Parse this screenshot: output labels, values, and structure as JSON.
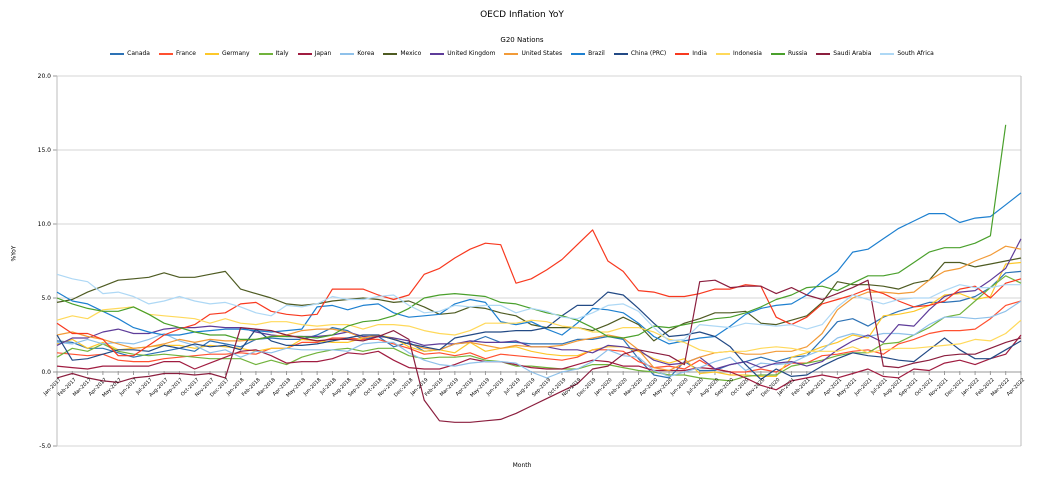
{
  "title": "OECD Inflation YoY",
  "subtitle": "G20 Nations",
  "chart_data": {
    "type": "line",
    "title": "OECD Inflation YoY",
    "subtitle": "G20 Nations",
    "xlabel": "Month",
    "ylabel": "%YoY",
    "ylim": [
      -5.0,
      20.0
    ],
    "grid": "horizontal",
    "legend_position": "top",
    "y_ticks": [
      "20.0",
      "15.0",
      "10.0",
      "5.0",
      "0.0",
      "-5.0"
    ],
    "x": [
      "Jan-2017",
      "Feb-2017",
      "Mar-2017",
      "Apr-2017",
      "May-2017",
      "Jun-2017",
      "Jul-2017",
      "Aug-2017",
      "Sep-2017",
      "Oct-2017",
      "Nov-2017",
      "Dec-2017",
      "Jan-2018",
      "Feb-2018",
      "Mar-2018",
      "Apr-2018",
      "May-2018",
      "Jun-2018",
      "Jul-2018",
      "Aug-2018",
      "Sep-2018",
      "Oct-2018",
      "Nov-2018",
      "Dec-2018",
      "Jan-2019",
      "Feb-2019",
      "Mar-2019",
      "Apr-2019",
      "May-2019",
      "Jun-2019",
      "Jul-2019",
      "Aug-2019",
      "Sep-2019",
      "Oct-2019",
      "Nov-2019",
      "Dec-2019",
      "Jan-2020",
      "Feb-2020",
      "Mar-2020",
      "Apr-2020",
      "May-2020",
      "Jun-2020",
      "Jul-2020",
      "Aug-2020",
      "Sep-2020",
      "Oct-2020",
      "Nov-2020",
      "Dec-2020",
      "Jan-2021",
      "Feb-2021",
      "Mar-2021",
      "Apr-2021",
      "May-2021",
      "Jun-2021",
      "Jul-2021",
      "Aug-2021",
      "Sep-2021",
      "Oct-2021",
      "Nov-2021",
      "Dec-2021",
      "Jan-2022",
      "Feb-2022",
      "Mar-2022",
      "Apr-2022"
    ],
    "series": [
      {
        "name": "Canada",
        "color": "#2d72b5",
        "values": [
          2.1,
          2.0,
          1.6,
          1.6,
          1.3,
          1.0,
          1.2,
          1.4,
          1.6,
          1.4,
          2.1,
          1.9,
          1.7,
          2.2,
          2.3,
          2.2,
          2.2,
          2.5,
          3.0,
          2.8,
          2.2,
          2.4,
          1.7,
          2.0,
          1.4,
          1.5,
          1.9,
          2.0,
          2.4,
          2.0,
          2.0,
          1.9,
          1.9,
          1.9,
          2.2,
          2.2,
          2.4,
          2.2,
          0.9,
          -0.2,
          -0.4,
          0.7,
          0.1,
          0.1,
          0.5,
          0.7,
          1.0,
          0.7,
          1.0,
          1.1,
          2.2,
          3.4,
          3.6,
          3.1,
          3.7,
          4.1,
          4.4,
          4.7,
          4.7,
          4.8,
          5.1,
          5.7,
          6.7,
          6.8
        ]
      },
      {
        "name": "France",
        "color": "#ff5030",
        "values": [
          1.3,
          1.2,
          1.1,
          1.2,
          0.8,
          0.7,
          0.7,
          0.9,
          1.0,
          1.1,
          1.2,
          1.2,
          1.3,
          1.2,
          1.6,
          1.6,
          2.0,
          2.0,
          2.3,
          2.3,
          2.2,
          2.2,
          1.9,
          1.6,
          1.2,
          1.3,
          1.1,
          1.3,
          0.9,
          1.2,
          1.1,
          1.0,
          0.9,
          0.8,
          1.0,
          1.5,
          1.5,
          1.4,
          0.7,
          0.3,
          0.4,
          0.2,
          0.8,
          0.2,
          0.0,
          0.0,
          0.2,
          0.0,
          0.6,
          0.6,
          1.1,
          1.2,
          1.4,
          1.5,
          1.2,
          1.9,
          2.2,
          2.6,
          2.8,
          2.8,
          2.9,
          3.6,
          4.5,
          4.8
        ]
      },
      {
        "name": "Germany",
        "color": "#fdc82a",
        "values": [
          1.9,
          2.2,
          1.6,
          2.0,
          1.5,
          1.6,
          1.7,
          1.8,
          1.8,
          1.6,
          1.8,
          1.7,
          1.6,
          1.4,
          1.6,
          1.6,
          2.2,
          2.1,
          2.0,
          2.0,
          2.3,
          2.5,
          2.3,
          1.7,
          1.4,
          1.5,
          1.3,
          2.0,
          1.4,
          1.6,
          1.7,
          1.4,
          1.2,
          1.1,
          1.1,
          1.5,
          1.7,
          1.7,
          1.4,
          0.9,
          0.6,
          0.9,
          -0.1,
          0.0,
          -0.2,
          -0.2,
          -0.3,
          -0.3,
          1.0,
          1.3,
          1.7,
          2.0,
          2.5,
          2.3,
          3.8,
          3.9,
          4.1,
          4.5,
          5.2,
          5.3,
          4.9,
          5.1,
          7.3,
          7.4
        ]
      },
      {
        "name": "Italy",
        "color": "#71b33c",
        "values": [
          1.0,
          1.6,
          1.4,
          1.9,
          1.4,
          1.2,
          1.1,
          1.2,
          1.1,
          1.0,
          0.9,
          0.9,
          0.9,
          0.5,
          0.8,
          0.5,
          1.0,
          1.3,
          1.5,
          1.6,
          1.4,
          1.6,
          1.6,
          1.1,
          0.9,
          1.0,
          1.0,
          1.1,
          0.8,
          0.7,
          0.4,
          0.4,
          0.3,
          0.2,
          0.2,
          0.5,
          0.5,
          0.3,
          0.1,
          0.0,
          -0.2,
          -0.2,
          -0.4,
          -0.5,
          -0.6,
          -0.3,
          -0.2,
          -0.2,
          0.4,
          0.6,
          0.8,
          1.1,
          1.3,
          1.3,
          1.9,
          2.0,
          2.5,
          3.0,
          3.7,
          3.9,
          4.8,
          5.7,
          6.5,
          6.0
        ]
      },
      {
        "name": "Japan",
        "color": "#a01c40",
        "values": [
          0.4,
          0.3,
          0.2,
          0.4,
          0.4,
          0.4,
          0.4,
          0.7,
          0.7,
          0.2,
          0.6,
          1.0,
          1.4,
          1.5,
          1.1,
          0.6,
          0.7,
          0.7,
          0.9,
          1.3,
          1.2,
          1.4,
          0.8,
          0.3,
          0.2,
          0.2,
          0.5,
          0.9,
          0.7,
          0.7,
          0.5,
          0.3,
          0.2,
          0.2,
          0.5,
          0.8,
          0.7,
          0.4,
          0.4,
          0.1,
          0.1,
          0.1,
          0.3,
          0.2,
          0.0,
          -0.4,
          -0.9,
          -1.2,
          -0.6,
          -0.4,
          -0.2,
          -0.4,
          -0.1,
          0.2,
          -0.3,
          -0.4,
          0.2,
          0.1,
          0.6,
          0.8,
          0.5,
          0.9,
          1.2,
          2.5
        ]
      },
      {
        "name": "Korea",
        "color": "#8fc1ea",
        "values": [
          2.0,
          1.9,
          2.2,
          1.9,
          2.0,
          1.9,
          2.2,
          2.6,
          2.1,
          1.8,
          1.3,
          1.5,
          1.0,
          1.4,
          1.3,
          1.6,
          1.5,
          1.5,
          1.5,
          1.4,
          1.9,
          2.0,
          2.0,
          1.3,
          0.8,
          0.5,
          0.4,
          0.6,
          0.7,
          0.7,
          0.6,
          0.0,
          -0.4,
          0.0,
          0.2,
          0.7,
          1.5,
          1.1,
          1.0,
          0.1,
          -0.3,
          0.0,
          0.3,
          0.7,
          1.0,
          0.1,
          0.6,
          0.5,
          0.6,
          1.1,
          1.5,
          2.3,
          2.6,
          2.4,
          2.6,
          2.6,
          2.5,
          3.2,
          3.7,
          3.7,
          3.6,
          3.7,
          4.1,
          4.8
        ]
      },
      {
        "name": "Mexico",
        "color": "#4e5b22",
        "values": [
          4.7,
          4.9,
          5.4,
          5.8,
          6.2,
          6.3,
          6.4,
          6.7,
          6.4,
          6.4,
          6.6,
          6.8,
          5.6,
          5.3,
          5.0,
          4.6,
          4.5,
          4.6,
          4.8,
          4.9,
          5.0,
          4.9,
          4.7,
          4.8,
          4.4,
          3.9,
          4.0,
          4.4,
          4.3,
          4.0,
          3.8,
          3.2,
          3.0,
          3.0,
          3.0,
          2.8,
          3.2,
          3.7,
          3.2,
          2.1,
          2.8,
          3.3,
          3.6,
          4.0,
          4.0,
          4.1,
          3.3,
          3.2,
          3.5,
          3.8,
          4.7,
          6.1,
          5.9,
          5.9,
          5.8,
          5.6,
          6.0,
          6.2,
          7.4,
          7.4,
          7.1,
          7.3,
          7.5,
          7.7
        ]
      },
      {
        "name": "United Kingdom",
        "color": "#5e3c99",
        "values": [
          1.8,
          2.3,
          2.3,
          2.7,
          2.9,
          2.6,
          2.6,
          2.9,
          3.0,
          3.0,
          3.1,
          3.0,
          3.0,
          2.7,
          2.5,
          2.4,
          2.4,
          2.4,
          2.5,
          2.7,
          2.4,
          2.4,
          2.3,
          2.1,
          1.8,
          1.9,
          1.9,
          2.1,
          2.0,
          2.0,
          2.1,
          1.7,
          1.7,
          1.5,
          1.5,
          1.3,
          1.8,
          1.7,
          1.5,
          0.8,
          0.5,
          0.6,
          1.0,
          0.2,
          0.5,
          0.7,
          0.3,
          0.6,
          0.7,
          0.4,
          0.7,
          1.5,
          2.1,
          2.5,
          2.0,
          3.2,
          3.1,
          4.2,
          5.1,
          5.4,
          5.5,
          6.2,
          7.0,
          9.0
        ]
      },
      {
        "name": "United States",
        "color": "#f29b38",
        "values": [
          2.5,
          2.7,
          2.4,
          2.2,
          1.9,
          1.6,
          1.7,
          1.9,
          2.2,
          2.0,
          2.2,
          2.1,
          2.1,
          2.2,
          2.4,
          2.5,
          2.8,
          2.9,
          2.9,
          2.7,
          2.3,
          2.5,
          2.2,
          1.9,
          1.6,
          1.5,
          1.9,
          2.0,
          1.8,
          1.6,
          1.8,
          1.7,
          1.7,
          1.8,
          2.1,
          2.3,
          2.5,
          2.3,
          1.5,
          0.3,
          0.1,
          0.6,
          1.0,
          1.3,
          1.4,
          1.2,
          1.2,
          1.4,
          1.4,
          1.7,
          2.6,
          4.2,
          5.0,
          5.4,
          5.4,
          5.3,
          5.4,
          6.2,
          6.8,
          7.0,
          7.5,
          7.9,
          8.5,
          8.3
        ]
      },
      {
        "name": "Brazil",
        "color": "#1e80d0",
        "values": [
          5.4,
          4.8,
          4.6,
          4.1,
          3.6,
          3.0,
          2.7,
          2.5,
          2.5,
          2.7,
          2.8,
          2.9,
          2.9,
          2.8,
          2.7,
          2.8,
          2.9,
          4.4,
          4.5,
          4.2,
          4.5,
          4.6,
          4.0,
          3.7,
          3.8,
          3.9,
          4.6,
          4.9,
          4.7,
          3.4,
          3.2,
          3.4,
          2.9,
          2.5,
          3.3,
          4.3,
          4.2,
          4.0,
          3.3,
          2.4,
          1.9,
          2.1,
          2.3,
          2.4,
          3.1,
          3.9,
          4.3,
          4.5,
          4.6,
          5.2,
          6.1,
          6.8,
          8.1,
          8.3,
          9.0,
          9.7,
          10.2,
          10.7,
          10.7,
          10.1,
          10.4,
          10.5,
          11.3,
          12.1
        ]
      },
      {
        "name": "China (PRC)",
        "color": "#234a85",
        "values": [
          2.5,
          0.8,
          0.9,
          1.2,
          1.5,
          1.5,
          1.4,
          1.8,
          1.6,
          1.9,
          1.7,
          1.8,
          1.5,
          2.9,
          2.1,
          1.8,
          1.8,
          1.9,
          2.1,
          2.3,
          2.5,
          2.5,
          2.2,
          1.9,
          1.7,
          1.5,
          2.3,
          2.5,
          2.7,
          2.7,
          2.8,
          2.8,
          3.0,
          3.8,
          4.5,
          4.5,
          5.4,
          5.2,
          4.3,
          3.3,
          2.4,
          2.5,
          2.7,
          2.4,
          1.7,
          0.5,
          -0.5,
          0.2,
          -0.3,
          -0.2,
          0.4,
          0.9,
          1.3,
          1.1,
          1.0,
          0.8,
          0.7,
          1.5,
          2.3,
          1.5,
          0.9,
          0.9,
          1.5,
          2.1
        ]
      },
      {
        "name": "India",
        "color": "#f8391f",
        "values": [
          3.3,
          2.6,
          2.6,
          2.2,
          1.1,
          1.1,
          1.8,
          2.5,
          2.9,
          3.2,
          3.9,
          4.0,
          4.6,
          4.7,
          4.1,
          3.9,
          3.8,
          3.9,
          5.6,
          5.6,
          5.6,
          5.2,
          4.9,
          5.2,
          6.6,
          7.0,
          7.7,
          8.3,
          8.7,
          8.6,
          6.0,
          6.3,
          6.9,
          7.6,
          8.6,
          9.6,
          7.5,
          6.8,
          5.5,
          5.4,
          5.1,
          5.1,
          5.3,
          5.6,
          5.6,
          5.9,
          5.8,
          3.7,
          3.2,
          3.7,
          4.6,
          4.9,
          5.2,
          5.6,
          5.3,
          4.8,
          4.4,
          4.5,
          4.8,
          5.6,
          5.8,
          5.0,
          6.0,
          6.3
        ]
      },
      {
        "name": "Indonesia",
        "color": "#ffd95a",
        "values": [
          3.5,
          3.8,
          3.6,
          4.2,
          4.3,
          4.4,
          3.9,
          3.8,
          3.7,
          3.6,
          3.3,
          3.6,
          3.3,
          3.2,
          3.4,
          3.4,
          3.2,
          3.1,
          3.2,
          3.2,
          2.9,
          3.2,
          3.2,
          3.1,
          2.8,
          2.6,
          2.5,
          2.8,
          3.3,
          3.3,
          3.3,
          3.5,
          3.4,
          3.1,
          3.0,
          2.7,
          2.7,
          3.0,
          3.0,
          2.7,
          2.2,
          2.0,
          1.5,
          1.3,
          1.4,
          1.4,
          1.6,
          1.7,
          1.6,
          1.4,
          1.4,
          1.4,
          1.7,
          1.3,
          1.5,
          1.6,
          1.6,
          1.7,
          1.8,
          1.9,
          2.2,
          2.1,
          2.6,
          3.5
        ]
      },
      {
        "name": "Russia",
        "color": "#4aa02c",
        "values": [
          5.0,
          4.6,
          4.3,
          4.1,
          4.1,
          4.4,
          3.9,
          3.3,
          3.0,
          2.7,
          2.5,
          2.5,
          2.2,
          2.2,
          2.4,
          2.4,
          2.4,
          2.3,
          2.5,
          3.1,
          3.4,
          3.5,
          3.8,
          4.3,
          5.0,
          5.2,
          5.3,
          5.2,
          5.1,
          4.7,
          4.6,
          4.3,
          4.0,
          3.8,
          3.5,
          3.0,
          2.4,
          2.3,
          2.5,
          3.1,
          3.0,
          3.2,
          3.4,
          3.6,
          3.7,
          4.0,
          4.4,
          4.9,
          5.2,
          5.7,
          5.8,
          5.5,
          6.0,
          6.5,
          6.5,
          6.7,
          7.4,
          8.1,
          8.4,
          8.4,
          8.7,
          9.2,
          16.7,
          null
        ]
      },
      {
        "name": "Saudi Arabia",
        "color": "#8b1e3e",
        "values": [
          -0.4,
          -0.1,
          -0.4,
          -0.6,
          -0.7,
          -0.4,
          -0.3,
          -0.1,
          -0.1,
          -0.2,
          -0.1,
          -0.4,
          3.0,
          2.9,
          2.8,
          2.5,
          2.3,
          2.1,
          2.2,
          2.2,
          2.1,
          2.4,
          2.8,
          2.2,
          -1.9,
          -3.3,
          -3.4,
          -3.4,
          -3.3,
          -3.2,
          -2.8,
          -2.3,
          -1.8,
          -1.3,
          -0.8,
          0.2,
          0.4,
          1.2,
          1.5,
          1.3,
          1.1,
          0.5,
          6.1,
          6.2,
          5.7,
          5.8,
          5.8,
          5.3,
          5.7,
          5.2,
          4.9,
          5.3,
          5.7,
          6.2,
          0.4,
          0.3,
          0.6,
          0.8,
          1.1,
          1.2,
          1.2,
          1.6,
          2.0,
          2.3
        ]
      },
      {
        "name": "South Africa",
        "color": "#aed8f5",
        "values": [
          6.6,
          6.3,
          6.1,
          5.3,
          5.4,
          5.1,
          4.6,
          4.8,
          5.1,
          4.8,
          4.6,
          4.7,
          4.4,
          4.0,
          3.8,
          4.5,
          4.4,
          4.6,
          5.1,
          4.9,
          4.9,
          5.1,
          5.2,
          4.5,
          4.0,
          4.1,
          4.5,
          4.4,
          4.5,
          4.5,
          4.0,
          4.3,
          4.1,
          3.7,
          3.6,
          4.0,
          4.5,
          4.6,
          4.1,
          3.0,
          2.1,
          2.2,
          3.2,
          3.1,
          3.0,
          3.3,
          3.2,
          3.1,
          3.2,
          2.9,
          3.2,
          4.4,
          5.2,
          4.9,
          4.6,
          4.9,
          5.0,
          5.0,
          5.5,
          5.9,
          5.7,
          5.7,
          5.9,
          5.9
        ]
      }
    ]
  }
}
